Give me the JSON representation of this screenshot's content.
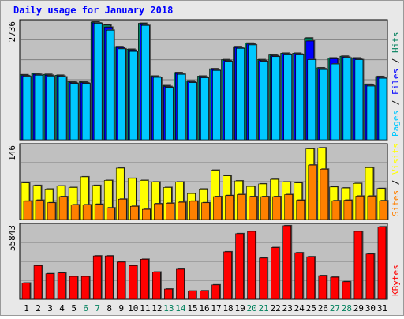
{
  "chart_data": [
    {
      "type": "bar",
      "title": "Daily usage for January 2018",
      "panel": "hits-files-pages",
      "ymax_label": "2736",
      "ylim": [
        0,
        2736
      ],
      "right_label": {
        "parts": [
          "Pages",
          "Files",
          "Hits"
        ],
        "separator": " / "
      },
      "colors": {
        "Hits": "#00805c",
        "Files": "#0000ff",
        "Pages": "#00c8ff"
      },
      "categories": [
        "1",
        "2",
        "3",
        "4",
        "5",
        "6",
        "7",
        "8",
        "9",
        "10",
        "11",
        "12",
        "13",
        "14",
        "15",
        "16",
        "17",
        "18",
        "19",
        "20",
        "21",
        "22",
        "23",
        "24",
        "25",
        "26",
        "27",
        "28",
        "29",
        "30",
        "31"
      ],
      "series": [
        {
          "name": "Hits",
          "values": [
            1500,
            1530,
            1510,
            1490,
            1340,
            1340,
            2720,
            2650,
            2150,
            2090,
            2690,
            1470,
            1250,
            1550,
            1360,
            1470,
            1640,
            1850,
            2150,
            2230,
            1850,
            1960,
            2000,
            2000,
            2350,
            1660,
            1890,
            1930,
            1890,
            1280,
            1460
          ]
        },
        {
          "name": "Files",
          "values": [
            1480,
            1510,
            1490,
            1470,
            1320,
            1320,
            2700,
            2600,
            2130,
            2070,
            2660,
            1450,
            1230,
            1530,
            1340,
            1450,
            1620,
            1830,
            2130,
            2210,
            1830,
            1940,
            1980,
            1980,
            2280,
            1640,
            1870,
            1910,
            1870,
            1260,
            1440
          ]
        },
        {
          "name": "Pages",
          "values": [
            1460,
            1490,
            1470,
            1450,
            1300,
            1300,
            2690,
            2530,
            2100,
            2040,
            2640,
            1440,
            1210,
            1510,
            1320,
            1430,
            1600,
            1810,
            2110,
            2190,
            1810,
            1920,
            1960,
            1960,
            1850,
            1620,
            1750,
            1890,
            1850,
            1240,
            1420
          ]
        }
      ]
    },
    {
      "type": "bar",
      "panel": "visits-sites",
      "ymax_label": "146",
      "ylim": [
        0,
        146
      ],
      "right_label": {
        "parts": [
          "Sites",
          "Visits"
        ],
        "separator": " / "
      },
      "colors": {
        "Visits": "#ffff00",
        "Sites": "#ff8000"
      },
      "categories": [
        "1",
        "2",
        "3",
        "4",
        "5",
        "6",
        "7",
        "8",
        "9",
        "10",
        "11",
        "12",
        "13",
        "14",
        "15",
        "16",
        "17",
        "18",
        "19",
        "20",
        "21",
        "22",
        "23",
        "24",
        "25",
        "26",
        "27",
        "28",
        "29",
        "30",
        "31"
      ],
      "series": [
        {
          "name": "Visits",
          "values": [
            72,
            67,
            60,
            66,
            63,
            84,
            67,
            77,
            101,
            81,
            77,
            74,
            63,
            74,
            51,
            60,
            97,
            86,
            76,
            65,
            70,
            79,
            74,
            72,
            139,
            141,
            64,
            62,
            71,
            102,
            61
          ]
        },
        {
          "name": "Sites",
          "values": [
            36,
            38,
            33,
            45,
            29,
            29,
            30,
            23,
            40,
            26,
            20,
            31,
            32,
            34,
            36,
            33,
            45,
            47,
            49,
            45,
            45,
            45,
            49,
            38,
            107,
            99,
            37,
            38,
            46,
            46,
            37
          ]
        }
      ]
    },
    {
      "type": "bar",
      "panel": "kbytes",
      "ymax_label": "55843",
      "ylim": [
        0,
        55843
      ],
      "right_label": {
        "parts": [
          "KBytes"
        ],
        "separator": ""
      },
      "colors": {
        "KBytes": "#ff0000"
      },
      "categories": [
        "1",
        "2",
        "3",
        "4",
        "5",
        "6",
        "7",
        "8",
        "9",
        "10",
        "11",
        "12",
        "13",
        "14",
        "15",
        "16",
        "17",
        "18",
        "19",
        "20",
        "21",
        "22",
        "23",
        "24",
        "25",
        "26",
        "27",
        "28",
        "29",
        "30",
        "31"
      ],
      "series": [
        {
          "name": "KBytes",
          "values": [
            12200,
            25300,
            19200,
            19800,
            17200,
            17200,
            32600,
            32600,
            28000,
            25300,
            30100,
            20500,
            7700,
            22600,
            6200,
            6400,
            10800,
            35700,
            49400,
            51100,
            31000,
            38900,
            55300,
            35000,
            32000,
            17800,
            16600,
            13200,
            51100,
            34000,
            54500
          ]
        }
      ]
    }
  ],
  "x_axis": {
    "labels": [
      "1",
      "2",
      "3",
      "4",
      "5",
      "6",
      "7",
      "8",
      "9",
      "10",
      "11",
      "12",
      "13",
      "14",
      "15",
      "16",
      "17",
      "18",
      "19",
      "20",
      "21",
      "22",
      "23",
      "24",
      "25",
      "26",
      "27",
      "28",
      "29",
      "30",
      "31"
    ],
    "weekend_days": [
      "6",
      "7",
      "13",
      "14",
      "20",
      "21",
      "27",
      "28"
    ],
    "weekday_color": "#000000",
    "weekend_color": "#00805c"
  },
  "colors": {
    "title": "#0000ff",
    "panel_bg": "#c0c0c0",
    "frame_bg": "#e8e8e8",
    "gridline": "#808080",
    "bar_shadow": "#404040"
  }
}
